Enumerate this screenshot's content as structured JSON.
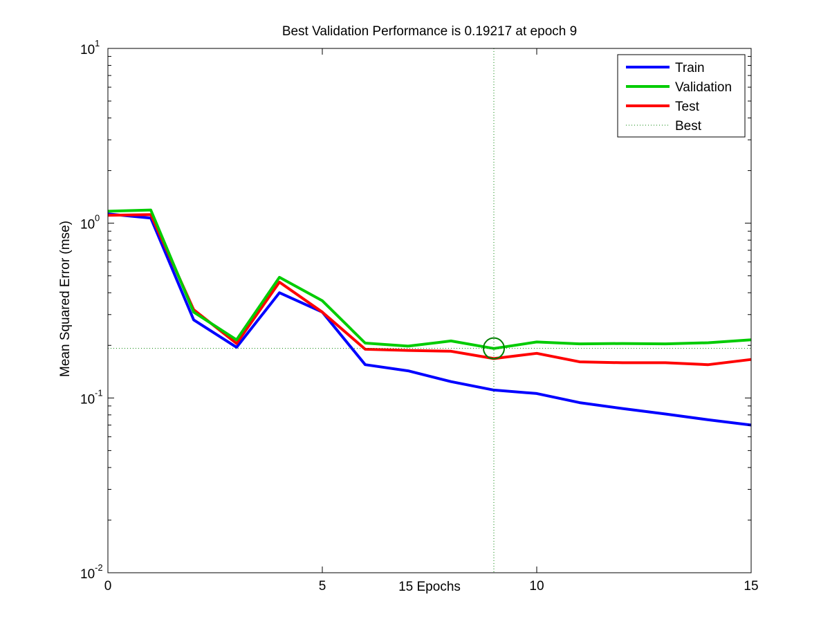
{
  "chart_data": {
    "type": "line",
    "title": "Best Validation Performance is 0.19217 at epoch 9",
    "xlabel": "15 Epochs",
    "ylabel": "Mean Squared Error  (mse)",
    "xlim": [
      0,
      15
    ],
    "ylim": [
      0.01,
      10
    ],
    "yscale": "log",
    "x_ticks": [
      0,
      5,
      10,
      15
    ],
    "x_tick_labels": [
      "0",
      "5",
      "10",
      "15"
    ],
    "y_ticks": [
      {
        "value": 0.01,
        "base": "10",
        "exp": "-2"
      },
      {
        "value": 0.1,
        "base": "10",
        "exp": "-1"
      },
      {
        "value": 1,
        "base": "10",
        "exp": "0"
      },
      {
        "value": 10,
        "base": "10",
        "exp": "1"
      }
    ],
    "grid": false,
    "legend_position": "top-right",
    "x": [
      0,
      1,
      2,
      3,
      4,
      5,
      6,
      7,
      8,
      9,
      10,
      11,
      12,
      13,
      14,
      15
    ],
    "series": [
      {
        "name": "Train",
        "color": "#0000ff",
        "style": "solid",
        "values": [
          1.13,
          1.07,
          0.28,
          0.195,
          0.4,
          0.31,
          0.155,
          0.143,
          0.124,
          0.111,
          0.106,
          0.094,
          0.087,
          0.081,
          0.075,
          0.07
        ]
      },
      {
        "name": "Validation",
        "color": "#00cc00",
        "style": "solid",
        "values": [
          1.17,
          1.19,
          0.31,
          0.215,
          0.49,
          0.36,
          0.206,
          0.198,
          0.212,
          0.192,
          0.209,
          0.204,
          0.205,
          0.204,
          0.207,
          0.215
        ]
      },
      {
        "name": "Test",
        "color": "#ff0000",
        "style": "solid",
        "values": [
          1.11,
          1.12,
          0.32,
          0.205,
          0.46,
          0.31,
          0.19,
          0.187,
          0.185,
          0.168,
          0.18,
          0.161,
          0.159,
          0.159,
          0.155,
          0.166
        ]
      }
    ],
    "best": {
      "name": "Best",
      "epoch": 9,
      "value": 0.19217,
      "color": "#008000",
      "style": "dotted"
    }
  }
}
